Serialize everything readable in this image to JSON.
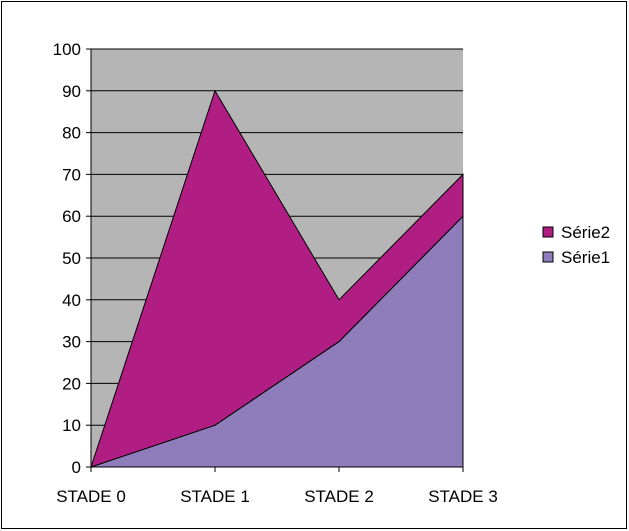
{
  "chart_data": {
    "type": "area",
    "stacked": true,
    "categories": [
      "STADE 0",
      "STADE 1",
      "STADE 2",
      "STADE 3"
    ],
    "series": [
      {
        "name": "Série1",
        "values": [
          0,
          10,
          30,
          60
        ],
        "color": "#8e7cbb"
      },
      {
        "name": "Série2",
        "values": [
          0,
          80,
          10,
          10
        ],
        "color": "#b01e83"
      }
    ],
    "ylim": [
      0,
      100
    ],
    "yticks": [
      0,
      10,
      20,
      30,
      40,
      50,
      60,
      70,
      80,
      90,
      100
    ],
    "grid": true,
    "legend_position": "right",
    "plot_background": "#b5b5b5",
    "legend_order": [
      "Série2",
      "Série1"
    ]
  }
}
